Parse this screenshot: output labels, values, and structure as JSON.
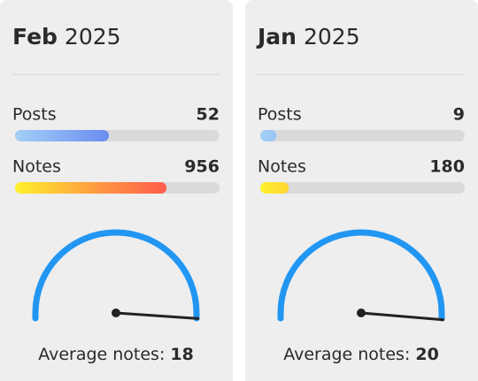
{
  "cards": [
    {
      "month": "Feb",
      "year": "2025",
      "posts_label": "Posts",
      "posts": 52,
      "notes_label": "Notes",
      "notes": 956,
      "average_label": "Average notes:",
      "average": 18
    },
    {
      "month": "Jan",
      "year": "2025",
      "posts_label": "Posts",
      "posts": 9,
      "notes_label": "Notes",
      "notes": 180,
      "average_label": "Average notes:",
      "average": 20
    }
  ]
}
